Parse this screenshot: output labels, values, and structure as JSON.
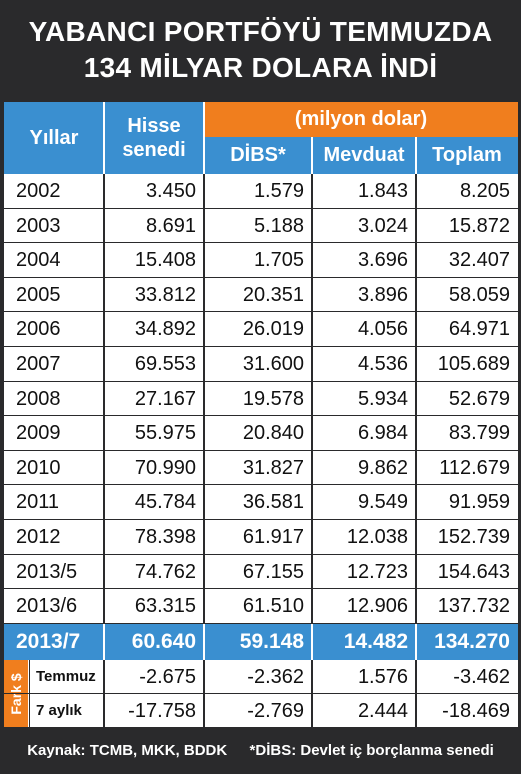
{
  "title": {
    "line1": "YABANCI PORTFÖYÜ TEMMUZDA",
    "line2": "134 MİLYAR DOLARA İNDİ"
  },
  "chart_data": {
    "type": "table",
    "unit_label": "(milyon dolar)",
    "columns": [
      "Yıllar",
      "Hisse senedi",
      "DİBS*",
      "Mevduat",
      "Toplam"
    ],
    "rows": [
      [
        "2002",
        "3.450",
        "1.579",
        "1.843",
        "8.205"
      ],
      [
        "2003",
        "8.691",
        "5.188",
        "3.024",
        "15.872"
      ],
      [
        "2004",
        "15.408",
        "1.705",
        "3.696",
        "32.407"
      ],
      [
        "2005",
        "33.812",
        "20.351",
        "3.896",
        "58.059"
      ],
      [
        "2006",
        "34.892",
        "26.019",
        "4.056",
        "64.971"
      ],
      [
        "2007",
        "69.553",
        "31.600",
        "4.536",
        "105.689"
      ],
      [
        "2008",
        "27.167",
        "19.578",
        "5.934",
        "52.679"
      ],
      [
        "2009",
        "55.975",
        "20.840",
        "6.984",
        "83.799"
      ],
      [
        "2010",
        "70.990",
        "31.827",
        "9.862",
        "112.679"
      ],
      [
        "2011",
        "45.784",
        "36.581",
        "9.549",
        "91.959"
      ],
      [
        "2012",
        "78.398",
        "61.917",
        "12.038",
        "152.739"
      ],
      [
        "2013/5",
        "74.762",
        "67.155",
        "12.723",
        "154.643"
      ],
      [
        "2013/6",
        "63.315",
        "61.510",
        "12.906",
        "137.732"
      ]
    ],
    "highlight_row": [
      "2013/7",
      "60.640",
      "59.148",
      "14.482",
      "134.270"
    ],
    "fark": {
      "label": "Fark $",
      "rows": [
        [
          "Temmuz",
          "-2.675",
          "-2.362",
          "1.576",
          "-3.462"
        ],
        [
          "7 aylık",
          "-17.758",
          "-2.769",
          "2.444",
          "-18.469"
        ]
      ]
    }
  },
  "footer": {
    "source": "Kaynak: TCMB, MKK, BDDK",
    "note": "*DİBS: Devlet iç borçlanma senedi"
  },
  "colors": {
    "header_blue": "#3a8fd0",
    "accent_orange": "#f07e1e",
    "frame_dark": "#2a2a2c"
  }
}
